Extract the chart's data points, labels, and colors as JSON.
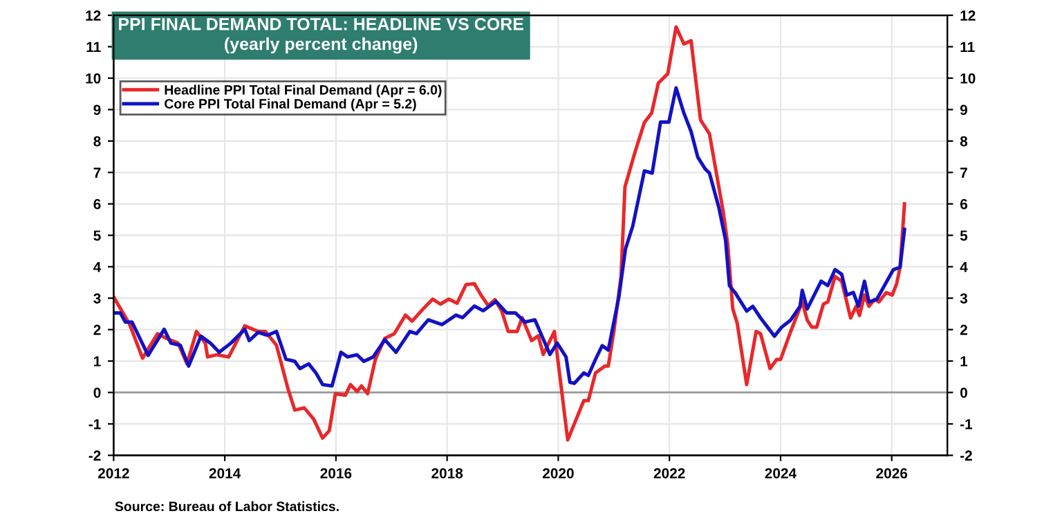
{
  "chart_data": {
    "type": "line",
    "title": "PPI FINAL DEMAND TOTAL: HEADLINE VS CORE",
    "subtitle": "(yearly percent change)",
    "annotations": [
      "Source: Bureau of Labor Statistics."
    ],
    "xlim": [
      2012,
      2027
    ],
    "xticks": [
      2012,
      2014,
      2016,
      2018,
      2020,
      2022,
      2024,
      2026
    ],
    "ylim": [
      -2,
      12
    ],
    "yticks": [
      -2,
      -1,
      0,
      1,
      2,
      3,
      4,
      5,
      6,
      7,
      8,
      9,
      10,
      11,
      12
    ],
    "y2lim": [
      -2,
      12
    ],
    "y2ticks": [
      -2,
      -1,
      0,
      1,
      2,
      3,
      4,
      5,
      6,
      7,
      8,
      9,
      10,
      11,
      12
    ],
    "grid": true,
    "legend": "top left",
    "line_style": "solid",
    "ref_lines": [
      {
        "axis": "y",
        "value": 0,
        "color": "#999999"
      }
    ],
    "series": [
      {
        "name": "Headline PPI Total Final Demand (Apr = 6.0)",
        "color": "#e8282b",
        "x": [
          2012.0,
          2012.29,
          2012.52,
          2012.79,
          2012.95,
          2013.16,
          2013.32,
          2013.49,
          2013.65,
          2013.69,
          2013.86,
          2014.07,
          2014.36,
          2014.6,
          2014.73,
          2014.93,
          2015.14,
          2015.26,
          2015.43,
          2015.6,
          2015.76,
          2015.88,
          2015.99,
          2016.17,
          2016.26,
          2016.38,
          2016.46,
          2016.57,
          2016.71,
          2016.88,
          2017.05,
          2017.25,
          2017.37,
          2017.58,
          2017.74,
          2017.88,
          2018.03,
          2018.18,
          2018.34,
          2018.49,
          2018.62,
          2018.74,
          2018.86,
          2018.98,
          2019.1,
          2019.26,
          2019.35,
          2019.52,
          2019.64,
          2019.73,
          2019.93,
          2020.17,
          2020.46,
          2020.54,
          2020.67,
          2020.84,
          2020.9,
          2021.0,
          2021.13,
          2021.2,
          2021.38,
          2021.55,
          2021.68,
          2021.8,
          2021.97,
          2022.12,
          2022.26,
          2022.39,
          2022.56,
          2022.72,
          2022.97,
          2023.05,
          2023.14,
          2023.22,
          2023.39,
          2023.56,
          2023.64,
          2023.81,
          2023.93,
          2024.0,
          2024.18,
          2024.39,
          2024.48,
          2024.56,
          2024.65,
          2024.77,
          2024.85,
          2024.98,
          2025.1,
          2025.26,
          2025.36,
          2025.42,
          2025.51,
          2025.59,
          2025.69,
          2025.77,
          2025.9,
          2026.01,
          2026.09,
          2026.15,
          2026.23
        ],
        "values": [
          3.04,
          2.16,
          1.09,
          1.87,
          1.72,
          1.57,
          0.91,
          1.94,
          1.57,
          1.13,
          1.2,
          1.13,
          2.12,
          1.94,
          1.94,
          1.5,
          0.1,
          -0.56,
          -0.49,
          -0.85,
          -1.45,
          -1.22,
          -0.04,
          -0.09,
          0.25,
          0.03,
          0.21,
          -0.04,
          1.06,
          1.72,
          1.87,
          2.46,
          2.27,
          2.68,
          2.97,
          2.81,
          2.97,
          2.84,
          3.43,
          3.46,
          3.07,
          2.76,
          2.95,
          2.6,
          1.94,
          1.94,
          2.38,
          1.65,
          1.8,
          1.21,
          1.94,
          -1.51,
          -0.26,
          -0.26,
          0.62,
          0.84,
          0.84,
          1.94,
          3.7,
          6.54,
          7.64,
          8.59,
          8.89,
          9.84,
          10.14,
          11.63,
          11.09,
          11.19,
          8.67,
          8.23,
          5.73,
          4.7,
          2.66,
          2.2,
          0.25,
          1.94,
          1.87,
          0.76,
          1.05,
          1.05,
          1.93,
          2.88,
          2.3,
          2.08,
          2.08,
          2.81,
          2.88,
          3.69,
          3.54,
          2.37,
          2.74,
          2.45,
          3.1,
          2.74,
          2.96,
          2.88,
          3.18,
          3.1,
          3.47,
          3.98,
          6.0
        ]
      },
      {
        "name": "Core PPI Total Final Demand (Apr = 5.2)",
        "color": "#1212c4",
        "x": [
          2012.0,
          2012.12,
          2012.21,
          2012.33,
          2012.62,
          2012.91,
          2013.03,
          2013.2,
          2013.35,
          2013.57,
          2013.74,
          2013.9,
          2014.11,
          2014.36,
          2014.44,
          2014.6,
          2014.77,
          2014.93,
          2015.1,
          2015.26,
          2015.35,
          2015.51,
          2015.64,
          2015.76,
          2015.93,
          2016.09,
          2016.21,
          2016.38,
          2016.5,
          2016.67,
          2016.88,
          2017.08,
          2017.33,
          2017.45,
          2017.66,
          2017.91,
          2018.16,
          2018.28,
          2018.49,
          2018.65,
          2018.88,
          2019.07,
          2019.23,
          2019.4,
          2019.58,
          2019.85,
          2019.98,
          2020.14,
          2020.21,
          2020.29,
          2020.46,
          2020.54,
          2020.67,
          2020.79,
          2020.9,
          2021.09,
          2021.21,
          2021.34,
          2021.55,
          2021.69,
          2021.84,
          2021.99,
          2022.12,
          2022.26,
          2022.39,
          2022.51,
          2022.64,
          2022.72,
          2022.89,
          2023.01,
          2023.08,
          2023.18,
          2023.39,
          2023.5,
          2023.64,
          2023.89,
          2024.02,
          2024.18,
          2024.35,
          2024.39,
          2024.48,
          2024.73,
          2024.85,
          2024.98,
          2025.1,
          2025.19,
          2025.31,
          2025.4,
          2025.51,
          2025.59,
          2025.73,
          2026.03,
          2026.15,
          2026.23
        ],
        "values": [
          2.53,
          2.53,
          2.24,
          2.24,
          1.18,
          2.01,
          1.57,
          1.5,
          0.84,
          1.79,
          1.57,
          1.28,
          1.57,
          2.01,
          1.65,
          1.91,
          1.82,
          1.94,
          1.06,
          0.99,
          0.76,
          0.91,
          0.62,
          0.25,
          0.21,
          1.28,
          1.13,
          1.2,
          0.99,
          1.13,
          1.68,
          1.28,
          1.94,
          1.87,
          2.31,
          2.16,
          2.46,
          2.38,
          2.75,
          2.6,
          2.9,
          2.53,
          2.53,
          2.24,
          2.31,
          1.21,
          1.57,
          1.13,
          0.32,
          0.29,
          0.62,
          0.54,
          1.05,
          1.49,
          1.35,
          3.03,
          4.57,
          5.29,
          7.05,
          6.98,
          8.6,
          8.6,
          9.69,
          8.89,
          8.3,
          7.49,
          7.12,
          6.98,
          5.88,
          4.85,
          3.4,
          3.18,
          2.59,
          2.74,
          2.37,
          1.79,
          2.08,
          2.3,
          2.74,
          3.25,
          2.66,
          3.54,
          3.4,
          3.91,
          3.76,
          3.1,
          3.18,
          2.74,
          3.54,
          2.88,
          2.96,
          3.91,
          3.98,
          5.19
        ]
      }
    ]
  }
}
